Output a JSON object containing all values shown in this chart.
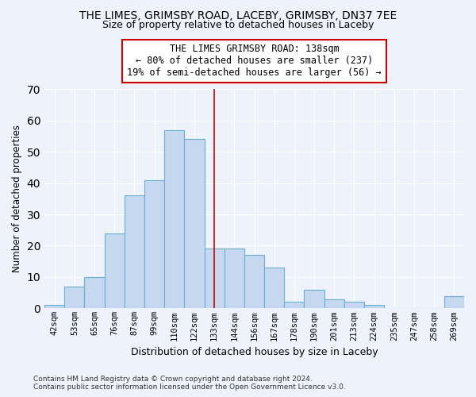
{
  "title_line1": "THE LIMES, GRIMSBY ROAD, LACEBY, GRIMSBY, DN37 7EE",
  "title_line2": "Size of property relative to detached houses in Laceby",
  "xlabel": "Distribution of detached houses by size in Laceby",
  "ylabel": "Number of detached properties",
  "categories": [
    "42sqm",
    "53sqm",
    "65sqm",
    "76sqm",
    "87sqm",
    "99sqm",
    "110sqm",
    "122sqm",
    "133sqm",
    "144sqm",
    "156sqm",
    "167sqm",
    "178sqm",
    "190sqm",
    "201sqm",
    "213sqm",
    "224sqm",
    "235sqm",
    "247sqm",
    "258sqm",
    "269sqm"
  ],
  "values": [
    1,
    7,
    10,
    24,
    36,
    41,
    57,
    54,
    19,
    19,
    17,
    13,
    2,
    6,
    3,
    2,
    1,
    0,
    0,
    0,
    4
  ],
  "bar_color": "#c5d8f0",
  "bar_edge_color": "#6aaed6",
  "vline_idx": 8,
  "marker_label_line1": "THE LIMES GRIMSBY ROAD: 138sqm",
  "marker_label_line2": "← 80% of detached houses are smaller (237)",
  "marker_label_line3": "19% of semi-detached houses are larger (56) →",
  "vline_color": "#cc0000",
  "background_color": "#eef3fb",
  "grid_color": "#ffffff",
  "ylim": [
    0,
    70
  ],
  "yticks": [
    0,
    10,
    20,
    30,
    40,
    50,
    60,
    70
  ],
  "footer_line1": "Contains HM Land Registry data © Crown copyright and database right 2024.",
  "footer_line2": "Contains public sector information licensed under the Open Government Licence v3.0."
}
